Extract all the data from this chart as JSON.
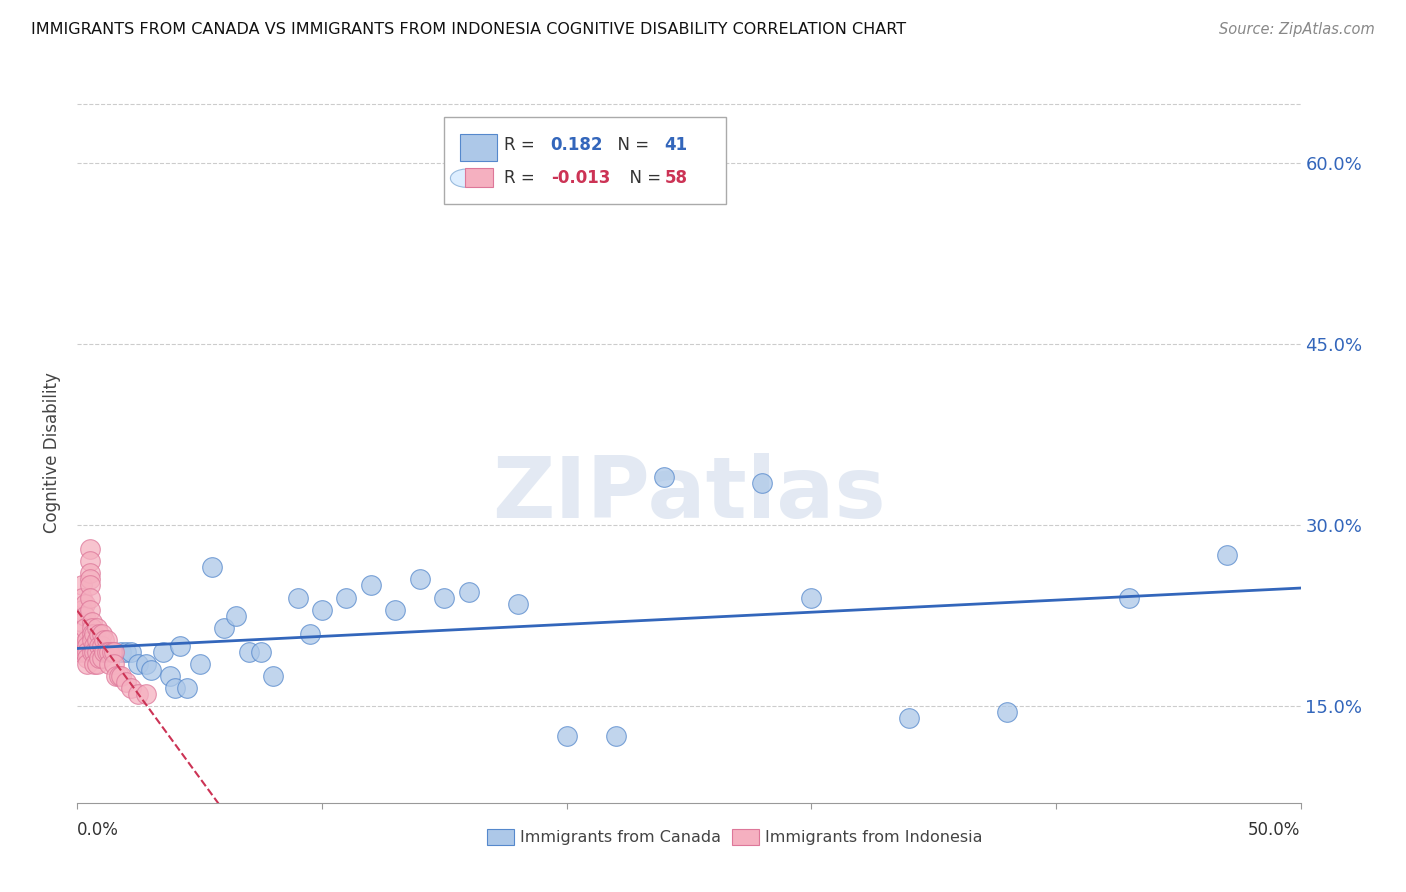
{
  "title": "IMMIGRANTS FROM CANADA VS IMMIGRANTS FROM INDONESIA COGNITIVE DISABILITY CORRELATION CHART",
  "source": "Source: ZipAtlas.com",
  "ylabel": "Cognitive Disability",
  "xlim": [
    0.0,
    0.5
  ],
  "ylim": [
    0.07,
    0.65
  ],
  "yticks": [
    0.15,
    0.3,
    0.45,
    0.6
  ],
  "ytick_labels": [
    "15.0%",
    "30.0%",
    "45.0%",
    "60.0%"
  ],
  "canada_R": 0.182,
  "canada_N": 41,
  "indonesia_R": -0.013,
  "indonesia_N": 58,
  "canada_color": "#adc8e8",
  "canada_edge_color": "#5588cc",
  "indonesia_color": "#f5b0c0",
  "indonesia_edge_color": "#dd7799",
  "canada_line_color": "#3366bb",
  "indonesia_line_color": "#cc3355",
  "watermark": "ZIPatlas",
  "canada_x": [
    0.005,
    0.01,
    0.012,
    0.015,
    0.018,
    0.02,
    0.022,
    0.025,
    0.028,
    0.03,
    0.035,
    0.038,
    0.04,
    0.042,
    0.045,
    0.05,
    0.055,
    0.06,
    0.065,
    0.07,
    0.075,
    0.08,
    0.09,
    0.095,
    0.1,
    0.11,
    0.12,
    0.13,
    0.14,
    0.15,
    0.16,
    0.18,
    0.2,
    0.22,
    0.24,
    0.28,
    0.3,
    0.34,
    0.38,
    0.43,
    0.47
  ],
  "canada_y": [
    0.195,
    0.195,
    0.195,
    0.195,
    0.195,
    0.195,
    0.195,
    0.185,
    0.185,
    0.18,
    0.195,
    0.175,
    0.165,
    0.2,
    0.165,
    0.185,
    0.265,
    0.215,
    0.225,
    0.195,
    0.195,
    0.175,
    0.24,
    0.21,
    0.23,
    0.24,
    0.25,
    0.23,
    0.255,
    0.24,
    0.245,
    0.235,
    0.125,
    0.125,
    0.34,
    0.335,
    0.24,
    0.14,
    0.145,
    0.24,
    0.275
  ],
  "indonesia_x": [
    0.001,
    0.001,
    0.001,
    0.002,
    0.002,
    0.002,
    0.002,
    0.003,
    0.003,
    0.003,
    0.003,
    0.004,
    0.004,
    0.004,
    0.004,
    0.004,
    0.005,
    0.005,
    0.005,
    0.005,
    0.005,
    0.005,
    0.005,
    0.006,
    0.006,
    0.006,
    0.006,
    0.006,
    0.007,
    0.007,
    0.007,
    0.007,
    0.008,
    0.008,
    0.008,
    0.008,
    0.009,
    0.009,
    0.009,
    0.01,
    0.01,
    0.01,
    0.011,
    0.011,
    0.012,
    0.012,
    0.013,
    0.013,
    0.014,
    0.015,
    0.015,
    0.016,
    0.017,
    0.018,
    0.02,
    0.022,
    0.025,
    0.028
  ],
  "indonesia_y": [
    0.195,
    0.2,
    0.205,
    0.25,
    0.24,
    0.23,
    0.22,
    0.235,
    0.225,
    0.215,
    0.195,
    0.205,
    0.2,
    0.195,
    0.19,
    0.185,
    0.28,
    0.27,
    0.26,
    0.255,
    0.25,
    0.24,
    0.23,
    0.22,
    0.215,
    0.21,
    0.205,
    0.195,
    0.21,
    0.2,
    0.195,
    0.185,
    0.215,
    0.205,
    0.195,
    0.185,
    0.21,
    0.2,
    0.19,
    0.21,
    0.2,
    0.19,
    0.205,
    0.195,
    0.205,
    0.195,
    0.195,
    0.185,
    0.195,
    0.195,
    0.185,
    0.175,
    0.175,
    0.175,
    0.17,
    0.165,
    0.16,
    0.16
  ]
}
